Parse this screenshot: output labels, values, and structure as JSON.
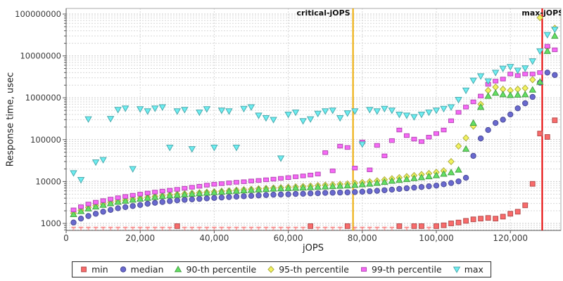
{
  "chart_data": {
    "type": "scatter",
    "title": "",
    "x_label": "jOPS",
    "y_label": "Response time, usec",
    "y_scale": "log",
    "grid": true,
    "legend_position": "bottom",
    "xlim": [
      0,
      133700
    ],
    "ylim": [
      680,
      136000000
    ],
    "x_ticks": [
      0,
      20000,
      40000,
      60000,
      80000,
      100000,
      120000
    ],
    "x_tick_labels": [
      "0",
      "20,000",
      "40,000",
      "60,000",
      "80,000",
      "100,000",
      "120,000"
    ],
    "y_ticks": [
      1000,
      10000,
      100000,
      1000000,
      10000000,
      100000000
    ],
    "y_tick_labels": [
      "1000",
      "10000",
      "100000",
      "1000000",
      "10000000",
      "100000000"
    ],
    "colors": {
      "grid_major": "#c9c9c9",
      "grid_minor": "#d7d7d7",
      "frame": "#aaaaaa",
      "axis": "#555555",
      "tick_label": "#3a3a3a",
      "marker_label": "#111111"
    },
    "vertical_markers": [
      {
        "label": "critical-jOPS",
        "x": 77500,
        "color": "#edaa00",
        "label_position": "left"
      },
      {
        "label": "max-jOPS",
        "x": 128600,
        "color": "#e60000",
        "label_position": "on-line"
      }
    ],
    "x": [
      2000,
      4000,
      6000,
      8000,
      10000,
      12000,
      14000,
      16000,
      18000,
      20000,
      22000,
      24000,
      26000,
      28000,
      30000,
      32000,
      34000,
      36000,
      38000,
      40000,
      42000,
      44000,
      46000,
      48000,
      50000,
      52000,
      54000,
      56000,
      58000,
      60000,
      62000,
      64000,
      66000,
      68000,
      70000,
      72000,
      74000,
      76000,
      78000,
      80000,
      82000,
      84000,
      86000,
      88000,
      90000,
      92000,
      94000,
      96000,
      98000,
      100000,
      102000,
      104000,
      106000,
      108000,
      110000,
      112000,
      114000,
      116000,
      118000,
      120000,
      122000,
      124000,
      126000,
      128000,
      130000,
      132000
    ],
    "series": [
      {
        "name": "min",
        "marker": "square",
        "color": "#f96b6b",
        "values": [
          800,
          800,
          800,
          800,
          800,
          800,
          800,
          800,
          800,
          800,
          800,
          800,
          800,
          800,
          860,
          800,
          800,
          800,
          800,
          800,
          800,
          800,
          800,
          800,
          800,
          800,
          800,
          800,
          800,
          800,
          800,
          800,
          860,
          800,
          800,
          800,
          800,
          860,
          800,
          800,
          800,
          800,
          800,
          800,
          860,
          800,
          860,
          860,
          800,
          860,
          900,
          1000,
          1050,
          1150,
          1250,
          1300,
          1350,
          1300,
          1450,
          1700,
          1900,
          2700,
          8800,
          140000,
          116000,
          290000
        ]
      },
      {
        "name": "median",
        "marker": "circle",
        "color": "#6969cf",
        "values": [
          1050,
          1300,
          1500,
          1700,
          1900,
          2100,
          2300,
          2450,
          2600,
          2750,
          2950,
          3100,
          3250,
          3400,
          3550,
          3650,
          3750,
          3850,
          3950,
          4050,
          4150,
          4250,
          4350,
          4450,
          4550,
          4650,
          4750,
          4850,
          4900,
          4950,
          5050,
          5100,
          5200,
          5250,
          5350,
          5400,
          5450,
          5500,
          5600,
          5700,
          5850,
          6000,
          6200,
          6400,
          6650,
          6900,
          7150,
          7400,
          7700,
          8000,
          8600,
          9200,
          10100,
          12300,
          41000,
          107000,
          170000,
          250000,
          300000,
          400000,
          560000,
          740000,
          1050000,
          2300000,
          4000000,
          3500000
        ]
      },
      {
        "name": "90-th percentile",
        "marker": "triangle-up",
        "color": "#63e063",
        "values": [
          1650,
          1950,
          2250,
          2500,
          2750,
          3000,
          3250,
          3450,
          3650,
          3850,
          4050,
          4250,
          4450,
          4600,
          4750,
          4900,
          5050,
          5200,
          5350,
          5500,
          5650,
          5800,
          5950,
          6100,
          6250,
          6400,
          6550,
          6700,
          6800,
          6900,
          7000,
          7100,
          7250,
          7400,
          7550,
          7700,
          7850,
          8000,
          8200,
          8500,
          8800,
          9200,
          9700,
          10300,
          10800,
          11300,
          11900,
          12500,
          13200,
          14000,
          15200,
          16500,
          19000,
          60000,
          250000,
          600000,
          1100000,
          1300000,
          1200000,
          1150000,
          1180000,
          1200000,
          1550000,
          2400000,
          13000000,
          30000000
        ]
      },
      {
        "name": "95-th percentile",
        "marker": "diamond",
        "color": "#f2f25e",
        "values": [
          1750,
          2050,
          2400,
          2650,
          2900,
          3150,
          3400,
          3600,
          3800,
          4000,
          4200,
          4400,
          4600,
          4800,
          4950,
          5100,
          5250,
          5400,
          5550,
          5700,
          5850,
          6000,
          6200,
          6400,
          6550,
          6700,
          6850,
          7000,
          7150,
          7300,
          7450,
          7600,
          7800,
          8000,
          8200,
          8400,
          8600,
          8800,
          9100,
          9500,
          9900,
          10400,
          11000,
          11700,
          12400,
          13100,
          13900,
          14700,
          15600,
          16600,
          18000,
          30000,
          70000,
          110000,
          210000,
          700000,
          1500000,
          1800000,
          1600000,
          1500000,
          1600000,
          1700000,
          2700000,
          82000000,
          16000000,
          46000000
        ]
      },
      {
        "name": "99-th percentile",
        "marker": "bar",
        "color": "#f768f7",
        "values": [
          2100,
          2500,
          2900,
          3200,
          3500,
          3800,
          4100,
          4400,
          4700,
          5000,
          5300,
          5600,
          5900,
          6200,
          6500,
          6900,
          7300,
          7700,
          8200,
          8600,
          8900,
          9300,
          9600,
          9900,
          10300,
          10600,
          11000,
          11400,
          11900,
          12400,
          13000,
          13600,
          14300,
          15100,
          49000,
          18000,
          70000,
          65000,
          21000,
          88000,
          19000,
          73000,
          41000,
          95000,
          170000,
          125000,
          103000,
          90000,
          115000,
          140000,
          170000,
          283000,
          450000,
          600000,
          800000,
          1100000,
          2100000,
          2500000,
          2800000,
          3700000,
          3400000,
          3700000,
          3700000,
          4000000,
          17000000,
          14000000
        ]
      },
      {
        "name": "max",
        "marker": "triangle-down",
        "color": "#6ceef2",
        "values": [
          16000,
          11000,
          310000,
          29000,
          33000,
          316000,
          520000,
          560000,
          20000,
          540000,
          480000,
          560000,
          600000,
          65000,
          480000,
          520000,
          60000,
          450000,
          540000,
          65000,
          500000,
          480000,
          65000,
          550000,
          600000,
          380000,
          330000,
          300000,
          36000,
          400000,
          450000,
          280000,
          310000,
          420000,
          480000,
          500000,
          330000,
          430000,
          480000,
          78000,
          520000,
          480000,
          550000,
          500000,
          400000,
          380000,
          350000,
          400000,
          450000,
          500000,
          550000,
          600000,
          900000,
          1500000,
          2600000,
          3300000,
          2500000,
          4000000,
          5000000,
          5500000,
          4500000,
          5100000,
          7500000,
          13000000,
          32000000,
          43000000
        ]
      }
    ]
  }
}
